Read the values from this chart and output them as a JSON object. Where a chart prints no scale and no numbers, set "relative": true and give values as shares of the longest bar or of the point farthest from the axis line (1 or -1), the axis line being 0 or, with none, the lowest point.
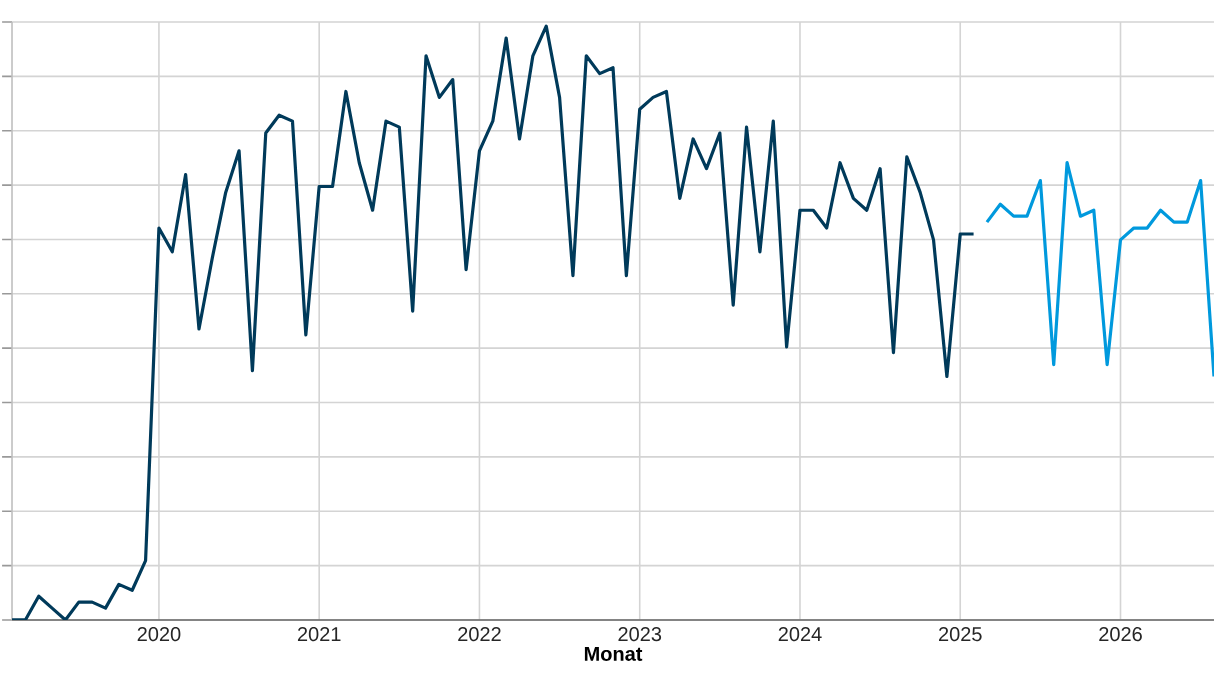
{
  "chart_data": {
    "type": "line",
    "xlabel": "Monat",
    "relative": true,
    "grid": true,
    "marker": "none",
    "line_style": "solid",
    "xlim": [
      "2019-02",
      "2026-08"
    ],
    "xticks": [
      {
        "value": "2020-01",
        "label": "2020"
      },
      {
        "value": "2021-01",
        "label": "2021"
      },
      {
        "value": "2022-01",
        "label": "2022"
      },
      {
        "value": "2023-01",
        "label": "2023"
      },
      {
        "value": "2024-01",
        "label": "2024"
      },
      {
        "value": "2025-01",
        "label": "2025"
      },
      {
        "value": "2026-01",
        "label": "2026"
      }
    ],
    "series": [
      {
        "color": "#003a5a",
        "x": [
          "2019-02",
          "2019-03",
          "2019-04",
          "2019-05",
          "2019-06",
          "2019-07",
          "2019-08",
          "2019-09",
          "2019-10",
          "2019-11",
          "2019-12",
          "2020-01",
          "2020-02",
          "2020-03",
          "2020-04",
          "2020-05",
          "2020-06",
          "2020-07",
          "2020-08",
          "2020-09",
          "2020-10",
          "2020-11",
          "2020-12",
          "2021-01",
          "2021-02",
          "2021-03",
          "2021-04",
          "2021-05",
          "2021-06",
          "2021-07",
          "2021-08",
          "2021-09",
          "2021-10",
          "2021-11",
          "2021-12",
          "2022-01",
          "2022-02",
          "2022-03",
          "2022-04",
          "2022-05",
          "2022-06",
          "2022-07",
          "2022-08",
          "2022-09",
          "2022-10",
          "2022-11",
          "2022-12",
          "2023-01",
          "2023-02",
          "2023-03",
          "2023-04",
          "2023-05",
          "2023-06",
          "2023-07",
          "2023-08",
          "2023-09",
          "2023-10",
          "2023-11",
          "2023-12",
          "2024-01",
          "2024-02",
          "2024-03",
          "2024-04",
          "2024-05",
          "2024-06",
          "2024-07",
          "2024-08",
          "2024-09",
          "2024-10",
          "2024-11",
          "2024-12",
          "2025-01",
          "2025-02"
        ],
        "values": [
          0.0,
          0.0,
          0.04,
          0.02,
          0.0,
          0.03,
          0.03,
          0.02,
          0.06,
          0.05,
          0.1,
          0.66,
          0.62,
          0.75,
          0.49,
          0.61,
          0.72,
          0.79,
          0.42,
          0.82,
          0.85,
          0.84,
          0.48,
          0.73,
          0.73,
          0.89,
          0.77,
          0.69,
          0.84,
          0.83,
          0.52,
          0.95,
          0.88,
          0.91,
          0.59,
          0.79,
          0.84,
          0.98,
          0.81,
          0.95,
          1.0,
          0.88,
          0.58,
          0.95,
          0.92,
          0.93,
          0.58,
          0.86,
          0.88,
          0.89,
          0.71,
          0.81,
          0.76,
          0.82,
          0.53,
          0.83,
          0.62,
          0.84,
          0.46,
          0.69,
          0.69,
          0.66,
          0.77,
          0.71,
          0.69,
          0.76,
          0.45,
          0.78,
          0.72,
          0.64,
          0.41,
          0.65,
          0.65
        ]
      },
      {
        "color": "#0099dd",
        "x": [
          "2025-03",
          "2025-04",
          "2025-05",
          "2025-06",
          "2025-07",
          "2025-08",
          "2025-09",
          "2025-10",
          "2025-11",
          "2025-12",
          "2026-01",
          "2026-02",
          "2026-03",
          "2026-04",
          "2026-05",
          "2026-06",
          "2026-07",
          "2026-08"
        ],
        "values": [
          0.67,
          0.7,
          0.68,
          0.68,
          0.74,
          0.43,
          0.77,
          0.68,
          0.69,
          0.43,
          0.64,
          0.66,
          0.66,
          0.69,
          0.67,
          0.67,
          0.74,
          0.41
        ]
      }
    ]
  }
}
